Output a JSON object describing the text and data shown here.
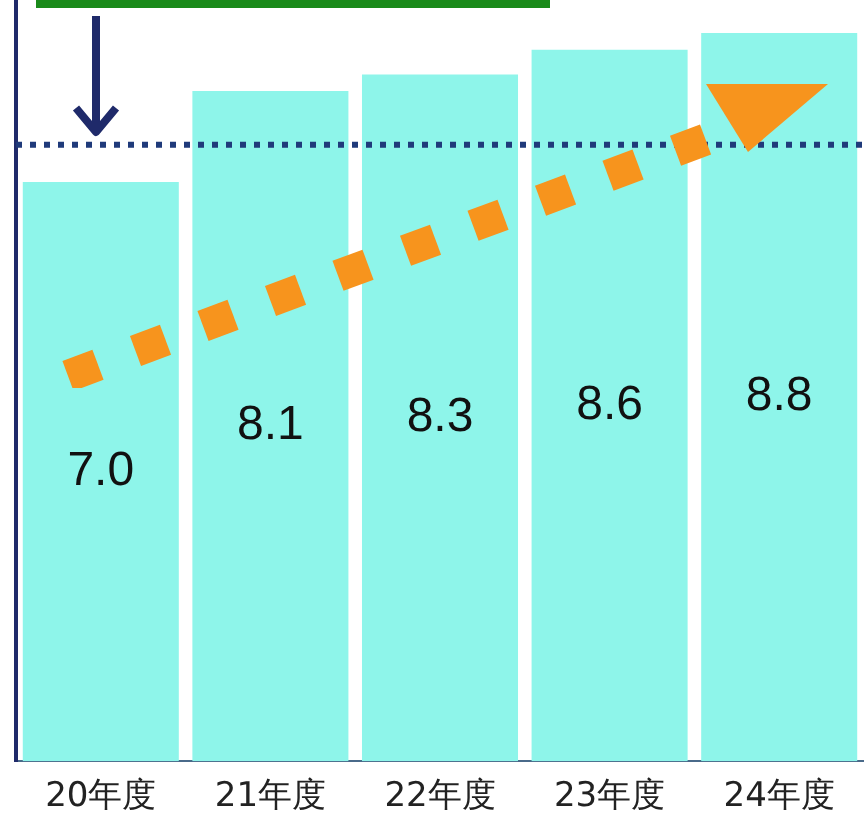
{
  "chart_data": {
    "type": "bar",
    "categories": [
      "20年度",
      "21年度",
      "22年度",
      "23年度",
      "24年度"
    ],
    "values": [
      7.0,
      8.1,
      8.3,
      8.6,
      8.8
    ],
    "color": "#8ef5ea",
    "value_labels": [
      "7.0",
      "8.1",
      "8.3",
      "8.6",
      "8.8"
    ],
    "ylim": [
      0,
      9.2
    ],
    "tick_labels": "x",
    "grid": false,
    "legend": false,
    "ref_lines": [
      {
        "axis": "y",
        "value": 7.45,
        "color": "#1f3a7a",
        "line_style": "dotted"
      }
    ]
  }
}
